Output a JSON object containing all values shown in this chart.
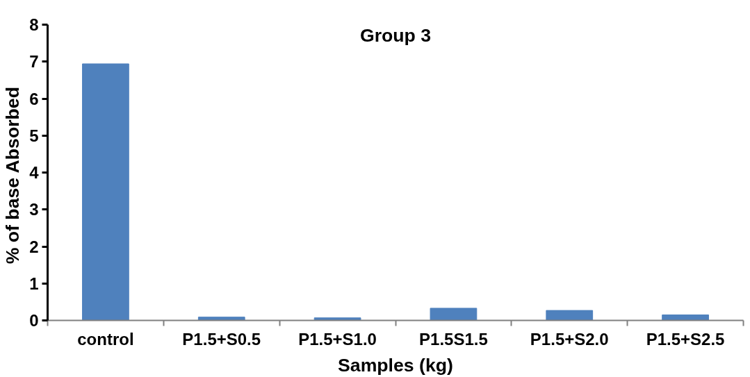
{
  "chart_data": {
    "type": "bar",
    "title": "Group 3",
    "xlabel": "Samples (kg)",
    "ylabel": "%  of base Absorbed",
    "categories": [
      "control",
      "P1.5+S0.5",
      "P1.5+S1.0",
      "P1.5S1.5",
      "P1.5+S2.0",
      "P1.5+S2.5"
    ],
    "values": [
      6.94,
      0.09,
      0.07,
      0.33,
      0.27,
      0.15
    ],
    "color": "#4f81bd",
    "ylim": [
      0,
      8
    ],
    "yticks": [
      0,
      1,
      2,
      3,
      4,
      5,
      6,
      7,
      8
    ],
    "grid": false
  }
}
